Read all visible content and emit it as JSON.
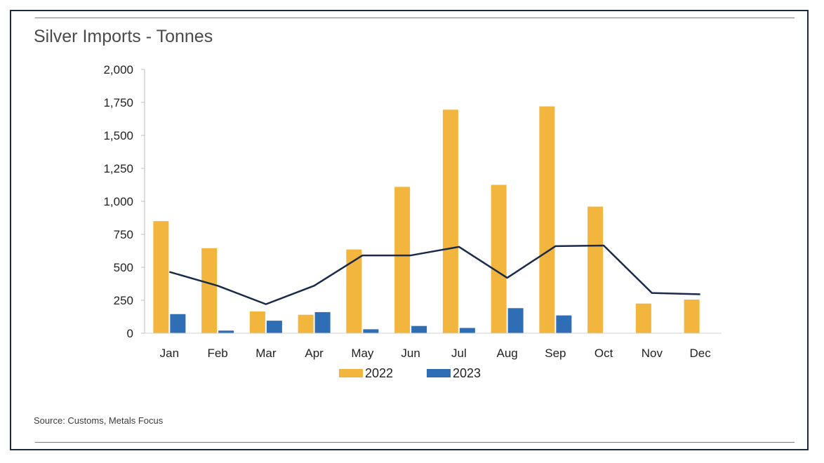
{
  "chart_data": {
    "type": "bar",
    "title": "Silver Imports - Tonnes",
    "categories": [
      "Jan",
      "Feb",
      "Mar",
      "Apr",
      "May",
      "Jun",
      "Jul",
      "Aug",
      "Sep",
      "Oct",
      "Nov",
      "Dec"
    ],
    "series": [
      {
        "name": "2022",
        "type": "bar",
        "color": "#F2B63F",
        "values": [
          850,
          645,
          165,
          140,
          635,
          1110,
          1695,
          1125,
          1720,
          960,
          225,
          255
        ]
      },
      {
        "name": "2023",
        "type": "bar",
        "color": "#2F6DB5",
        "values": [
          145,
          20,
          95,
          160,
          30,
          55,
          40,
          190,
          135,
          null,
          null,
          null
        ]
      },
      {
        "type": "line",
        "color": "#1B2A4A",
        "values": [
          465,
          360,
          220,
          360,
          590,
          590,
          655,
          420,
          660,
          665,
          305,
          295
        ]
      }
    ],
    "ylim": [
      0,
      2000
    ],
    "yticks": [
      0,
      250,
      500,
      750,
      1000,
      1250,
      1500,
      1750,
      2000
    ],
    "ytick_labels": [
      "0",
      "250",
      "500",
      "750",
      "1,000",
      "1,250",
      "1,500",
      "1,750",
      "2,000"
    ],
    "grid": false,
    "legend": "bottom"
  },
  "source": "Source: Customs, Metals Focus"
}
